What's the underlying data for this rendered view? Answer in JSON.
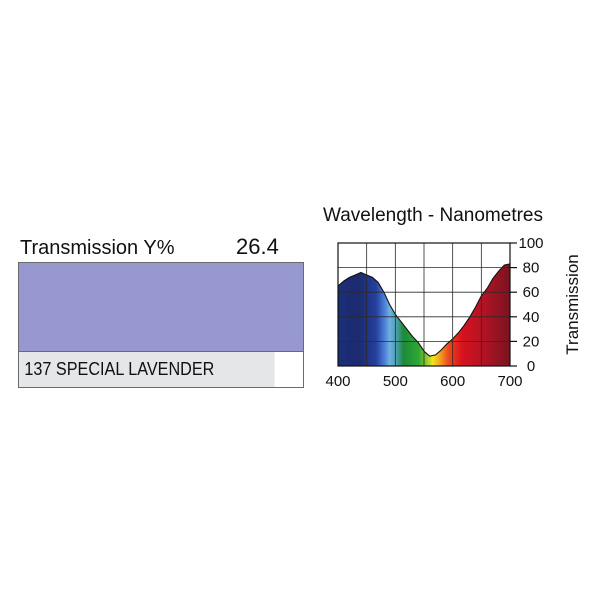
{
  "filter": {
    "transmission_label": "Transmission Y%",
    "transmission_value": "26.4",
    "name": "137 SPECIAL LAVENDER",
    "swatch_color": "#9898d0"
  },
  "chart_data": {
    "type": "area",
    "title": "Wavelength - Nanometres",
    "xlabel": "",
    "ylabel": "Transmission",
    "xlim": [
      400,
      700
    ],
    "ylim": [
      0,
      100
    ],
    "x_ticks": [
      "400",
      "500",
      "600",
      "700"
    ],
    "y_ticks": [
      "0",
      "20",
      "40",
      "60",
      "80",
      "100"
    ],
    "grid": true,
    "series": [
      {
        "x": [
          400,
          410,
          420,
          430,
          440,
          450,
          460,
          470,
          480,
          490,
          500,
          510,
          520,
          530,
          540,
          550,
          560,
          570,
          580,
          590,
          600,
          610,
          620,
          630,
          640,
          650,
          660,
          670,
          680,
          690,
          700
        ],
        "y": [
          65,
          69,
          72,
          74,
          76,
          74,
          72,
          68,
          60,
          50,
          42,
          36,
          30,
          24,
          19,
          12,
          8,
          9,
          13,
          18,
          22,
          27,
          33,
          40,
          48,
          57,
          63,
          71,
          77,
          82,
          83
        ]
      }
    ]
  }
}
